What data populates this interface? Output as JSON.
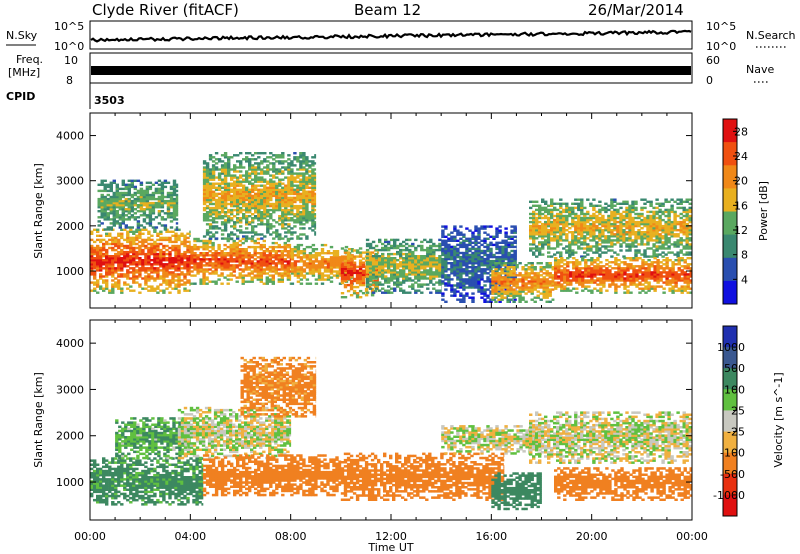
{
  "header": {
    "station": "Clyde River (fitACF)",
    "beam": "Beam 12",
    "date": "26/Mar/2014"
  },
  "status_panels": {
    "nsky_label": "N.Sky",
    "nsearch_label": "N.Search",
    "noise_ticks": [
      "10^5",
      "10^0"
    ],
    "freq_label_1": "Freq.",
    "freq_label_2": "[MHz]",
    "freq_ticks": [
      "10",
      "8"
    ],
    "nave_label": "Nave",
    "nave_ticks": [
      "60",
      "0"
    ],
    "cpid_label": "CPID",
    "cpid_value": "3503"
  },
  "chart_data": [
    {
      "type": "heatmap",
      "quantity": "Power",
      "colorbar_label": "Power [dB]",
      "ylabel": "Slant Range [km]",
      "xlabel": "",
      "x_ticks": [
        "00:00",
        "04:00",
        "08:00",
        "12:00",
        "16:00",
        "20:00",
        "00:00"
      ],
      "x_range_hours": [
        0,
        24
      ],
      "y_ticks": [
        1000,
        2000,
        3000,
        4000
      ],
      "ylim": [
        180,
        4500
      ],
      "colorbar_ticks": [
        4,
        8,
        12,
        16,
        20,
        24,
        28
      ],
      "colorbar_range": [
        0,
        30
      ],
      "colorscale": [
        "#1010e0",
        "#2a4fb0",
        "#3a8870",
        "#5aa860",
        "#e8b020",
        "#f08818",
        "#f05010",
        "#e01010"
      ],
      "echo_regions": [
        {
          "t_start": 0.0,
          "t_end": 4.0,
          "r_low": 500,
          "r_high": 1900,
          "level": 27
        },
        {
          "t_start": 0.3,
          "t_end": 3.5,
          "r_low": 1900,
          "r_high": 3000,
          "level": 14
        },
        {
          "t_start": 4.0,
          "t_end": 8.0,
          "r_low": 700,
          "r_high": 1700,
          "level": 25
        },
        {
          "t_start": 4.5,
          "t_end": 9.0,
          "r_low": 1700,
          "r_high": 3600,
          "level": 18
        },
        {
          "t_start": 8.0,
          "t_end": 10.5,
          "r_low": 700,
          "r_high": 1600,
          "level": 22
        },
        {
          "t_start": 10.0,
          "t_end": 11.5,
          "r_low": 400,
          "r_high": 1500,
          "level": 26
        },
        {
          "t_start": 11.0,
          "t_end": 14.0,
          "r_low": 500,
          "r_high": 1700,
          "level": 16
        },
        {
          "t_start": 14.0,
          "t_end": 17.0,
          "r_low": 300,
          "r_high": 2000,
          "level": 8
        },
        {
          "t_start": 16.0,
          "t_end": 18.5,
          "r_low": 300,
          "r_high": 1200,
          "level": 22
        },
        {
          "t_start": 17.5,
          "t_end": 24.0,
          "r_low": 1300,
          "r_high": 2600,
          "level": 18
        },
        {
          "t_start": 18.5,
          "t_end": 24.0,
          "r_low": 500,
          "r_high": 1300,
          "level": 26
        }
      ]
    },
    {
      "type": "heatmap",
      "quantity": "Velocity",
      "colorbar_label": "Velocity [m s^-1]",
      "ylabel": "Slant Range [km]",
      "xlabel": "Time UT",
      "x_ticks": [
        "00:00",
        "04:00",
        "08:00",
        "12:00",
        "16:00",
        "20:00",
        "00:00"
      ],
      "x_range_hours": [
        0,
        24
      ],
      "y_ticks": [
        1000,
        2000,
        3000,
        4000
      ],
      "ylim": [
        180,
        4500
      ],
      "colorbar_ticks": [
        "1000",
        "500",
        "100",
        "25",
        "-25",
        "-100",
        "-500",
        "-1000"
      ],
      "colorscale": [
        "#2030b0",
        "#3a5890",
        "#3c8860",
        "#60c040",
        "#c8c8c0",
        "#f0b040",
        "#f08020",
        "#e83010",
        "#e01010"
      ],
      "echo_regions": [
        {
          "t_start": 0.0,
          "t_end": 4.5,
          "r_low": 500,
          "r_high": 1500,
          "velocity": 150
        },
        {
          "t_start": 1.0,
          "t_end": 4.0,
          "r_low": 1500,
          "r_high": 2400,
          "velocity": 100
        },
        {
          "t_start": 3.5,
          "t_end": 8.0,
          "r_low": 1500,
          "r_high": 2600,
          "velocity": 0
        },
        {
          "t_start": 4.5,
          "t_end": 10.0,
          "r_low": 700,
          "r_high": 1600,
          "velocity": -200
        },
        {
          "t_start": 6.0,
          "t_end": 9.0,
          "r_low": 2400,
          "r_high": 3700,
          "velocity": -150
        },
        {
          "t_start": 10.0,
          "t_end": 16.5,
          "r_low": 600,
          "r_high": 1600,
          "velocity": -300
        },
        {
          "t_start": 14.0,
          "t_end": 18.0,
          "r_low": 1600,
          "r_high": 2200,
          "velocity": 0
        },
        {
          "t_start": 16.0,
          "t_end": 18.0,
          "r_low": 400,
          "r_high": 1200,
          "velocity": 200
        },
        {
          "t_start": 17.5,
          "t_end": 24.0,
          "r_low": 1400,
          "r_high": 2500,
          "velocity": 0
        },
        {
          "t_start": 18.5,
          "t_end": 24.0,
          "r_low": 600,
          "r_high": 1300,
          "velocity": -200
        }
      ]
    }
  ]
}
